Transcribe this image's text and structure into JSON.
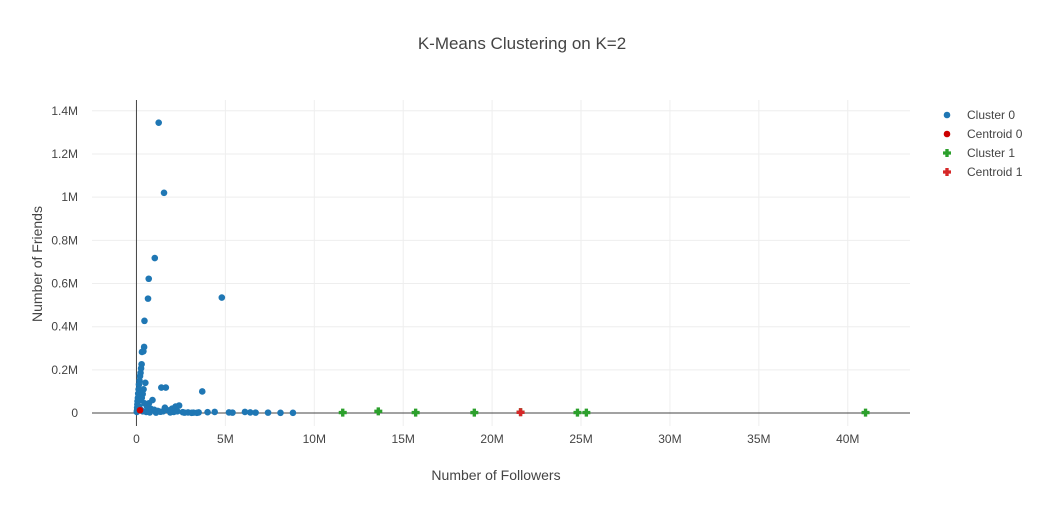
{
  "chart_data": {
    "type": "scatter",
    "title": "K-Means Clustering on K=2",
    "xlabel": "Number of Followers",
    "ylabel": "Number of Friends",
    "xlim": [
      -2500000,
      43500000
    ],
    "ylim": [
      -60000,
      1450000
    ],
    "x_ticks": [
      {
        "value": 0,
        "label": "0"
      },
      {
        "value": 5000000,
        "label": "5M"
      },
      {
        "value": 10000000,
        "label": "10M"
      },
      {
        "value": 15000000,
        "label": "15M"
      },
      {
        "value": 20000000,
        "label": "20M"
      },
      {
        "value": 25000000,
        "label": "25M"
      },
      {
        "value": 30000000,
        "label": "30M"
      },
      {
        "value": 35000000,
        "label": "35M"
      },
      {
        "value": 40000000,
        "label": "40M"
      }
    ],
    "y_ticks": [
      {
        "value": 0,
        "label": "0"
      },
      {
        "value": 200000,
        "label": "0.2M"
      },
      {
        "value": 400000,
        "label": "0.4M"
      },
      {
        "value": 600000,
        "label": "0.6M"
      },
      {
        "value": 800000,
        "label": "0.8M"
      },
      {
        "value": 1000000,
        "label": "1M"
      },
      {
        "value": 1200000,
        "label": "1.2M"
      },
      {
        "value": 1400000,
        "label": "1.4M"
      }
    ],
    "grid": true,
    "legend_position": "top-right",
    "series": [
      {
        "name": "Cluster 0",
        "marker": "circle",
        "color": "#1f77b4",
        "points": [
          [
            1250000,
            1345000
          ],
          [
            1550000,
            1020000
          ],
          [
            1030000,
            718000
          ],
          [
            690000,
            622000
          ],
          [
            650000,
            530000
          ],
          [
            4800000,
            535000
          ],
          [
            450000,
            427000
          ],
          [
            430000,
            306000
          ],
          [
            390000,
            286000
          ],
          [
            310000,
            283000
          ],
          [
            290000,
            226000
          ],
          [
            260000,
            207000
          ],
          [
            230000,
            186000
          ],
          [
            200000,
            171000
          ],
          [
            170000,
            150000
          ],
          [
            140000,
            132000
          ],
          [
            120000,
            110000
          ],
          [
            100000,
            90000
          ],
          [
            80000,
            70000
          ],
          [
            60000,
            55000
          ],
          [
            50000,
            40000
          ],
          [
            40000,
            25000
          ],
          [
            30000,
            12000
          ],
          [
            20000,
            5000
          ],
          [
            500000,
            140000
          ],
          [
            400000,
            110000
          ],
          [
            350000,
            88000
          ],
          [
            300000,
            70000
          ],
          [
            250000,
            60000
          ],
          [
            700000,
            45000
          ],
          [
            600000,
            30000
          ],
          [
            800000,
            20000
          ],
          [
            1000000,
            15000
          ],
          [
            1400000,
            118000
          ],
          [
            1650000,
            118000
          ],
          [
            3700000,
            100000
          ],
          [
            1200000,
            10000
          ],
          [
            1500000,
            8000
          ],
          [
            1800000,
            12000
          ],
          [
            2000000,
            20000
          ],
          [
            2200000,
            30000
          ],
          [
            2400000,
            35000
          ],
          [
            2100000,
            5000
          ],
          [
            2600000,
            4000
          ],
          [
            2900000,
            3000
          ],
          [
            3200000,
            2000
          ],
          [
            3500000,
            3000
          ],
          [
            3100000,
            1000
          ],
          [
            4000000,
            4000
          ],
          [
            4400000,
            5000
          ],
          [
            5200000,
            3000
          ],
          [
            5400000,
            2000
          ],
          [
            6100000,
            5000
          ],
          [
            6400000,
            3000
          ],
          [
            6700000,
            2000
          ],
          [
            7400000,
            2000
          ],
          [
            8100000,
            1000
          ],
          [
            8800000,
            1000
          ],
          [
            2700000,
            2000
          ],
          [
            3400000,
            1000
          ],
          [
            1600000,
            25000
          ],
          [
            900000,
            60000
          ],
          [
            450000,
            45000
          ],
          [
            150000,
            30000
          ],
          [
            250000,
            15000
          ],
          [
            350000,
            8000
          ],
          [
            550000,
            5000
          ],
          [
            750000,
            3000
          ],
          [
            1100000,
            2000
          ],
          [
            1350000,
            6000
          ],
          [
            1900000,
            3000
          ],
          [
            2300000,
            8000
          ]
        ]
      },
      {
        "name": "Centroid 0",
        "marker": "circle",
        "color": "#cc0000",
        "points": [
          [
            200000,
            13000
          ]
        ]
      },
      {
        "name": "Cluster 1",
        "marker": "cross",
        "color": "#2ca02c",
        "points": [
          [
            11600000,
            2000
          ],
          [
            13600000,
            8000
          ],
          [
            15700000,
            2000
          ],
          [
            19000000,
            2000
          ],
          [
            21600000,
            4000
          ],
          [
            24800000,
            2000
          ],
          [
            25300000,
            2000
          ],
          [
            41000000,
            2000
          ]
        ]
      },
      {
        "name": "Centroid 1",
        "marker": "cross",
        "color": "#d62728",
        "points": [
          [
            21600000,
            3500
          ]
        ]
      }
    ]
  }
}
